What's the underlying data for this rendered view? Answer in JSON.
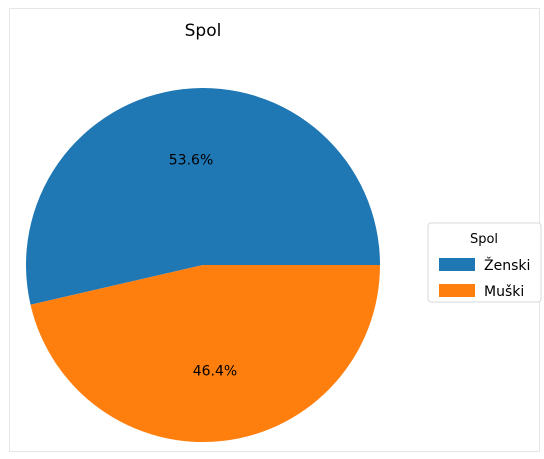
{
  "chart_data": {
    "type": "pie",
    "title": "Spol",
    "categories": [
      "Ženski",
      "Muški"
    ],
    "values": [
      53.6,
      46.4
    ],
    "value_labels": [
      "53.6%",
      "46.4%"
    ],
    "colors": [
      "#1f77b4",
      "#ff7f0e"
    ],
    "start_angle_deg": 0,
    "direction": "counterclockwise",
    "legend": {
      "title": "Spol",
      "placement": "center-right",
      "entries": [
        "Ženski",
        "Muški"
      ]
    }
  }
}
